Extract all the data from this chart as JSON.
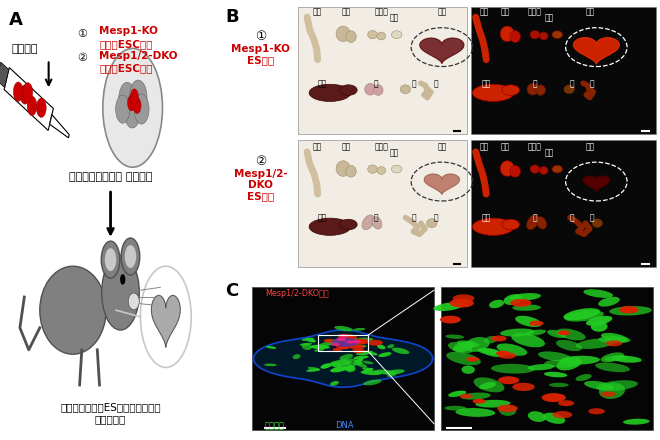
{
  "fig_width": 6.6,
  "fig_height": 4.4,
  "dpi": 100,
  "bg_color": "#ffffff",
  "red": "#cc0000",
  "gray": "#808080",
  "lgray": "#c8c8c8",
  "dgray": "#505050",
  "panel_A": {
    "donor_label": "ドナー：",
    "item1_num": "①",
    "item1_l1": "Mesp1-KO",
    "item1_l2": "マウスESC細胞",
    "item2_num": "②",
    "item2_l1": "Mesp1/2-DKO",
    "item2_l2": "マウスESC細胞",
    "host_text": "ホスト：　野生型 マウス胚",
    "cap1": "心臓へのドナーES細胞由来細胞の",
    "cap2": "寄与を評価"
  },
  "panel_B": {
    "r1_num": "①",
    "r1_l1": "Mesp1-KO",
    "r1_l2": "ES細胞",
    "r2_num": "②",
    "r2_l1": "Mesp1/2-",
    "r2_l2": "DKO",
    "r2_l3": "ES細胞",
    "t_shipo": "尻尾",
    "t_jinzo": "腎臓",
    "t_seishoku": "生殖腕",
    "t_boko": "膜胱",
    "t_shinzo": "心臓",
    "t_kanzo": "肝臓",
    "t_hai": "肺",
    "t_i": "胃",
    "t_cho": "腸"
  },
  "panel_C": {
    "lbl_dko": "Mesp1/2-DKO細胞",
    "lbl_cardio": "心筋細胞",
    "lbl_dna": "DNA"
  }
}
